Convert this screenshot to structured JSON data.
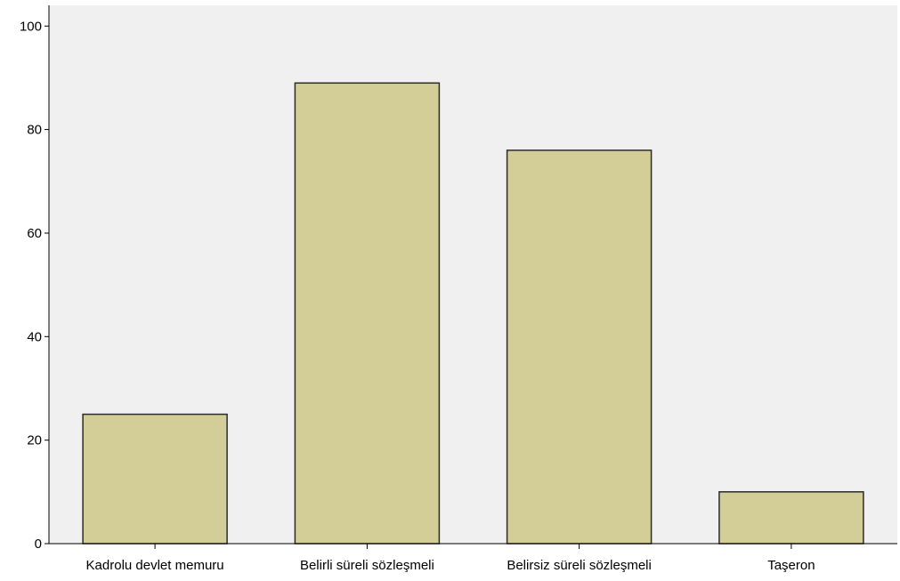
{
  "chart_data": {
    "type": "bar",
    "title": "",
    "xlabel": "",
    "ylabel": "",
    "categories": [
      "Kadrolu devlet memuru",
      "Belirli süreli sözleşmeli",
      "Belirsiz süreli sözleşmeli",
      "Taşeron"
    ],
    "values": [
      25,
      89,
      76,
      10
    ],
    "ylim": [
      0,
      104
    ],
    "yticks": [
      0,
      20,
      40,
      60,
      80,
      100
    ],
    "ytick_labels": [
      "0",
      "20",
      "40",
      "60",
      "80",
      "100"
    ],
    "grid": false,
    "legend": "none",
    "colors": {
      "plot_background": "#f0f0f0",
      "bar_fill": "#d3ce97",
      "bar_stroke": "#2b2b2b",
      "axis": "#000000"
    }
  }
}
